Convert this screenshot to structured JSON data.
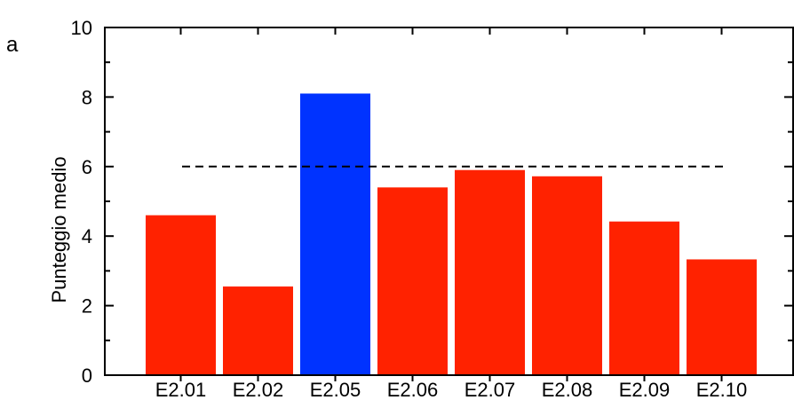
{
  "panel_label": "a",
  "chart_data": {
    "type": "bar",
    "title": "",
    "xlabel": "",
    "ylabel": "Punteggio medio",
    "ylim": [
      0,
      10
    ],
    "yticks": [
      0,
      2,
      4,
      6,
      8,
      10
    ],
    "categories": [
      "E2.01",
      "E2.02",
      "E2.05",
      "E2.06",
      "E2.07",
      "E2.08",
      "E2.09",
      "E2.10"
    ],
    "values": [
      4.6,
      2.55,
      8.1,
      5.4,
      5.9,
      5.72,
      4.42,
      3.33
    ],
    "bar_colors": [
      "#ff2200",
      "#ff2200",
      "#0033ff",
      "#ff2200",
      "#ff2200",
      "#ff2200",
      "#ff2200",
      "#ff2200"
    ],
    "reference_line": {
      "value": 6,
      "style": "dashed",
      "color": "#000000"
    },
    "grid": false,
    "legend": "none"
  }
}
